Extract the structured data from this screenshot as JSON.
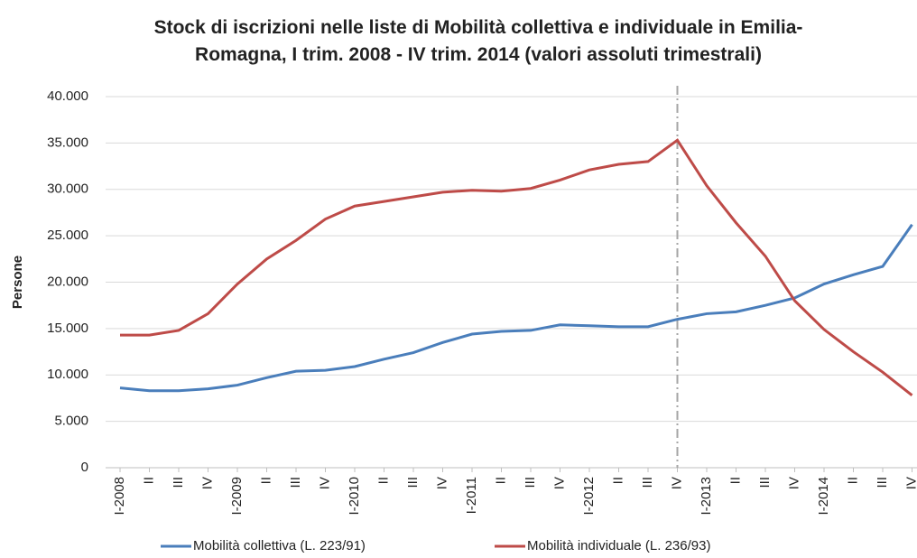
{
  "chart_data": {
    "type": "line",
    "title": "Stock di iscrizioni nelle liste di Mobilità collettiva e individuale in Emilia-Romagna, I trim. 2008 - IV trim. 2014 (valori assoluti trimestrali)",
    "y_label": "Persone",
    "categories": [
      "I-2008",
      "II",
      "III",
      "IV",
      "I-2009",
      "II",
      "III",
      "IV",
      "I-2010",
      "II",
      "III",
      "IV",
      "I-2011",
      "II",
      "III",
      "IV",
      "I-2012",
      "II",
      "III",
      "IV",
      "I-2013",
      "II",
      "III",
      "IV",
      "I-2014",
      "II",
      "III",
      "IV"
    ],
    "series": [
      {
        "name": "Mobilità collettiva (L. 223/91)",
        "color": "#4a7ebb",
        "values": [
          8600,
          8300,
          8300,
          8500,
          8900,
          9700,
          10400,
          10500,
          10900,
          11700,
          12400,
          13500,
          14400,
          14700,
          14800,
          15400,
          15300,
          15200,
          15200,
          16000,
          16600,
          16800,
          17500,
          18300,
          19800,
          20800,
          21700,
          26200
        ]
      },
      {
        "name": "Mobilità individuale (L. 236/93)",
        "color": "#be4b48",
        "values": [
          14300,
          14300,
          14800,
          16600,
          19800,
          22500,
          24500,
          26800,
          28200,
          28700,
          29200,
          29700,
          29900,
          29800,
          30100,
          31000,
          32100,
          32700,
          33000,
          35300,
          30400,
          26400,
          22800,
          18000,
          14900,
          12500,
          10300,
          7800
        ]
      }
    ],
    "ylim": [
      0,
      40000
    ],
    "yticks": [
      0,
      {
        "value": 5000,
        "label": "5.000"
      },
      {
        "value": 10000,
        "label": "10.000"
      },
      {
        "value": 15000,
        "label": "15.000"
      },
      {
        "value": 20000,
        "label": "20.000"
      },
      {
        "value": 25000,
        "label": "25.000"
      },
      {
        "value": 30000,
        "label": "30.000"
      },
      {
        "value": 35000,
        "label": "35.000"
      },
      {
        "value": 40000,
        "label": "40.000"
      }
    ],
    "grid": true,
    "marker_category_index": 19,
    "legend": "bottom"
  }
}
